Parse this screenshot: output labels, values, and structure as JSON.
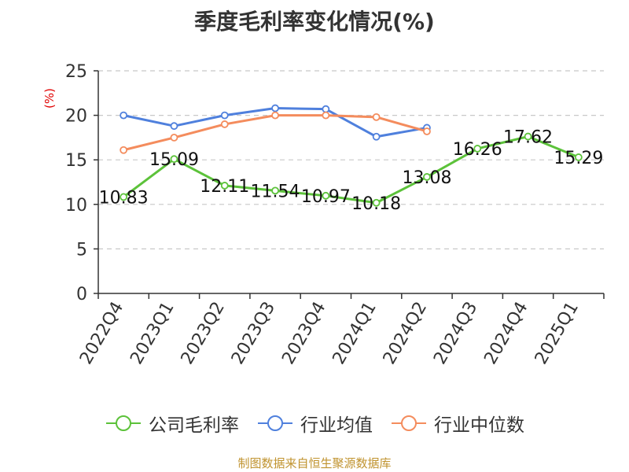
{
  "colors": {
    "company": "#5cc23a",
    "industry_avg": "#4f80dd",
    "industry_median": "#f48c5d",
    "axis": "#333333",
    "grid": "#c8c8c8",
    "unit": "#e00000",
    "source": "#c0932f"
  },
  "chart_data": {
    "type": "line",
    "title": "季度毛利率变化情况(%)",
    "ylabel": "(%)",
    "xlabel": "",
    "ylim": [
      0,
      25
    ],
    "yticks": [
      0,
      5,
      10,
      15,
      20,
      25
    ],
    "grid": "horizontal-dashed",
    "legend_position": "bottom",
    "categories": [
      "2022Q4",
      "2023Q1",
      "2023Q2",
      "2023Q3",
      "2023Q4",
      "2024Q1",
      "2024Q2",
      "2024Q3",
      "2024Q4",
      "2025Q1"
    ],
    "series": [
      {
        "name": "公司毛利率",
        "values": [
          10.83,
          15.09,
          12.11,
          11.54,
          10.97,
          10.18,
          13.08,
          16.26,
          17.62,
          15.29
        ],
        "labels": [
          "10.83",
          "15.09",
          "12.11",
          "11.54",
          "10.97",
          "10.18",
          "13.08",
          "16.26",
          "17.62",
          "15.29"
        ]
      },
      {
        "name": "行业均值",
        "values": [
          20.0,
          18.8,
          20.0,
          20.8,
          20.7,
          17.6,
          18.6,
          null,
          null,
          null
        ]
      },
      {
        "name": "行业中位数",
        "values": [
          16.1,
          17.5,
          19.0,
          20.0,
          20.0,
          19.8,
          18.2,
          null,
          null,
          null
        ]
      }
    ]
  },
  "source_text": "制图数据来自恒生聚源数据库"
}
